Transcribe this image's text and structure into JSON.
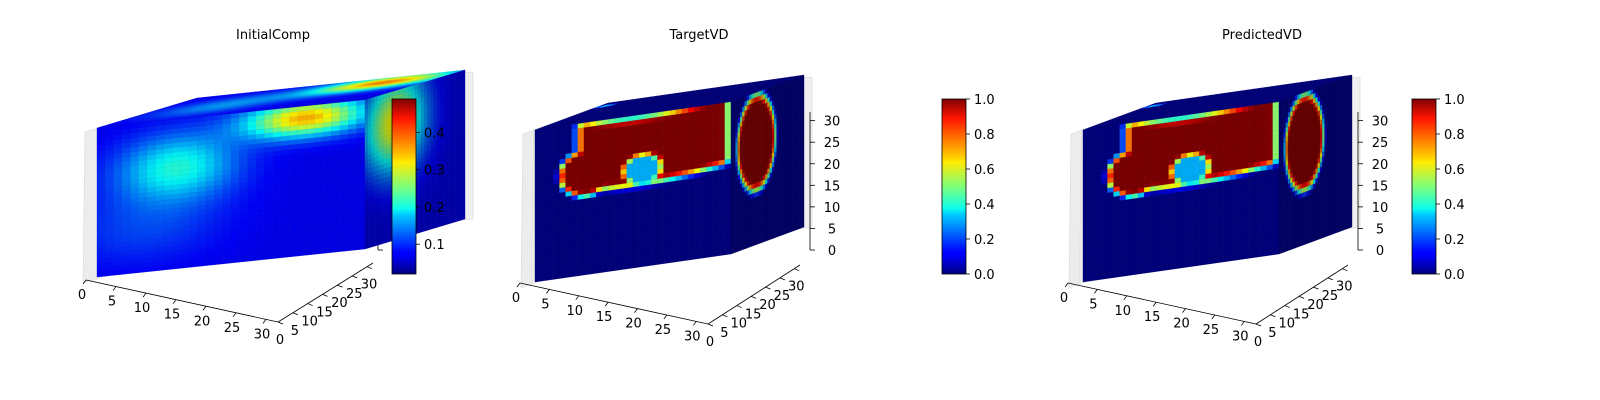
{
  "colormap": "jet",
  "chart_data": [
    {
      "type": "heatmap",
      "view": "3d-voxel-cube",
      "title": "InitialComp",
      "x_ticks": [
        "0",
        "5",
        "10",
        "15",
        "20",
        "25",
        "30"
      ],
      "y_ticks": [
        "0",
        "5",
        "10",
        "15",
        "20",
        "25",
        "30"
      ],
      "z_ticks": [
        "",
        "",
        "",
        "",
        "",
        "",
        ""
      ],
      "xlim": [
        0,
        32
      ],
      "ylim": [
        0,
        32
      ],
      "zlim": [
        0,
        32
      ],
      "grid_size": 32,
      "colorbar": {
        "min": 0.02,
        "max": 0.49,
        "ticks": [
          "0.1",
          "0.2",
          "0.3",
          "0.4"
        ],
        "tick_values": [
          0.1,
          0.2,
          0.3,
          0.4
        ]
      },
      "field": "diffuse"
    },
    {
      "type": "heatmap",
      "view": "3d-voxel-cube",
      "title": "TargetVD",
      "x_ticks": [
        "0",
        "5",
        "10",
        "15",
        "20",
        "25",
        "30"
      ],
      "y_ticks": [
        "0",
        "5",
        "10",
        "15",
        "20",
        "25",
        "30"
      ],
      "z_ticks": [
        "0",
        "5",
        "10",
        "15",
        "20",
        "25",
        "30"
      ],
      "xlim": [
        0,
        32
      ],
      "ylim": [
        0,
        32
      ],
      "zlim": [
        0,
        32
      ],
      "grid_size": 32,
      "colorbar": {
        "min": 0.0,
        "max": 1.0,
        "ticks": [
          "0.0",
          "0.2",
          "0.4",
          "0.6",
          "0.8",
          "1.0"
        ],
        "tick_values": [
          0.0,
          0.2,
          0.4,
          0.6,
          0.8,
          1.0
        ]
      },
      "field": "sharp"
    },
    {
      "type": "heatmap",
      "view": "3d-voxel-cube",
      "title": "PredictedVD",
      "x_ticks": [
        "0",
        "5",
        "10",
        "15",
        "20",
        "25",
        "30"
      ],
      "y_ticks": [
        "0",
        "5",
        "10",
        "15",
        "20",
        "25",
        "30"
      ],
      "z_ticks": [
        "0",
        "5",
        "10",
        "15",
        "20",
        "25",
        "30"
      ],
      "xlim": [
        0,
        32
      ],
      "ylim": [
        0,
        32
      ],
      "zlim": [
        0,
        32
      ],
      "grid_size": 32,
      "colorbar": {
        "min": 0.0,
        "max": 1.0,
        "ticks": [
          "0.0",
          "0.2",
          "0.4",
          "0.6",
          "0.8",
          "1.0"
        ],
        "tick_values": [
          0.0,
          0.2,
          0.4,
          0.6,
          0.8,
          1.0
        ]
      },
      "field": "sharp"
    }
  ]
}
